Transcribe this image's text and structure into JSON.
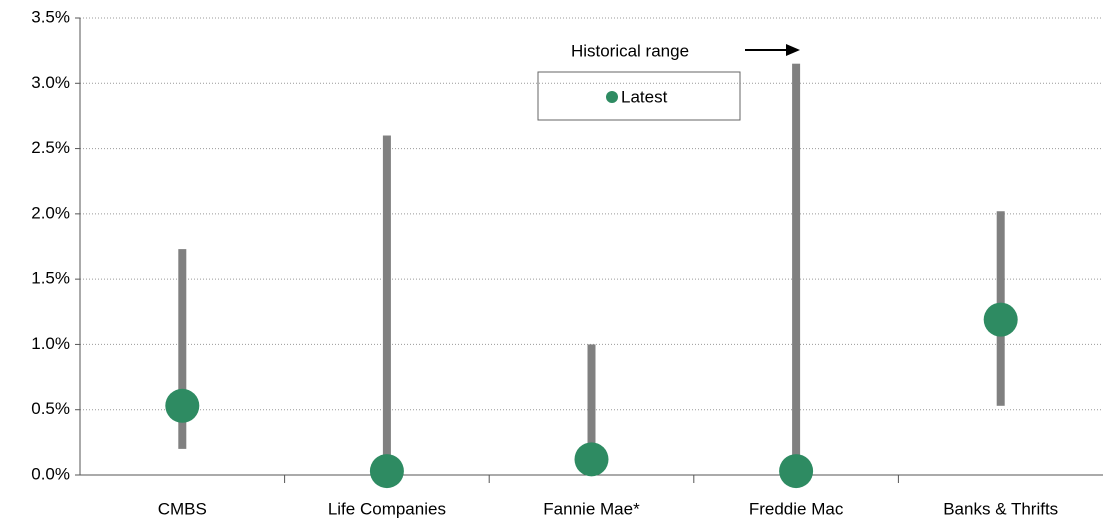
{
  "chart_data": {
    "type": "range",
    "categories": [
      "CMBS",
      "Life Companies",
      "Fannie Mae*",
      "Freddie Mac",
      "Banks & Thrifts"
    ],
    "series": [
      {
        "name": "Historical range",
        "color": "#808080",
        "low": [
          0.2,
          0.0,
          0.1,
          0.0,
          0.53
        ],
        "high": [
          1.73,
          2.6,
          1.0,
          3.15,
          2.02
        ]
      },
      {
        "name": "Latest",
        "color": "#2e8b62",
        "values": [
          0.53,
          0.03,
          0.12,
          0.03,
          1.19
        ]
      }
    ],
    "ylim": [
      0,
      3.5
    ],
    "yticks": [
      {
        "value": 0,
        "label": "0.0%"
      },
      {
        "value": 0.5,
        "label": "0.5%"
      },
      {
        "value": 1.0,
        "label": "1.0%"
      },
      {
        "value": 1.5,
        "label": "1.5%"
      },
      {
        "value": 2.0,
        "label": "2.0%"
      },
      {
        "value": 2.5,
        "label": "2.5%"
      },
      {
        "value": 3.0,
        "label": "3.0%"
      },
      {
        "value": 3.5,
        "label": "3.5%"
      }
    ],
    "grid": true
  }
}
